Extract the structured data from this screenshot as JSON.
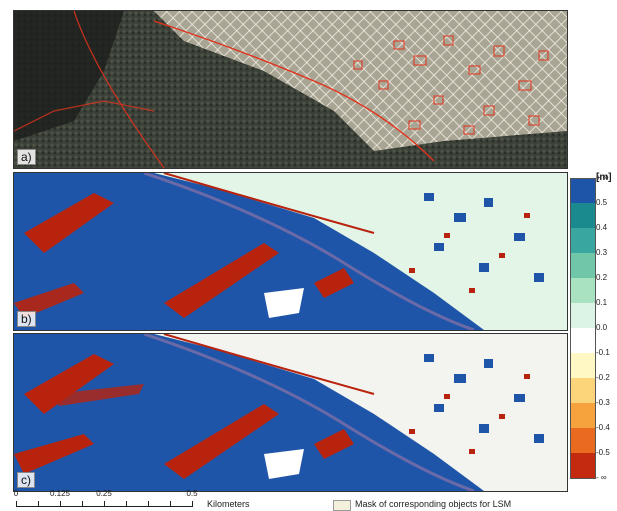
{
  "panels": [
    {
      "label": "a)"
    },
    {
      "label": "b)"
    },
    {
      "label": "c)"
    }
  ],
  "legend": {
    "unit": "[m]",
    "ticks": [
      "+ ∞",
      "0.5",
      "0.4",
      "0.3",
      "0.2",
      "0.1",
      "0.0",
      "-0.1",
      "-0.2",
      "-0.3",
      "-0.4",
      "-0.5",
      "- ∞"
    ],
    "colors": [
      "#1f55a8",
      "#1a8a8e",
      "#3aa6a0",
      "#6fc6a8",
      "#a9e2c0",
      "#dcf4e6",
      "#ffffff",
      "#fff7c4",
      "#fcd57a",
      "#f6a23d",
      "#ea6a20",
      "#c42a10"
    ]
  },
  "scalebar": {
    "ticks": [
      "0",
      "0.125",
      "0.25",
      "0.5"
    ],
    "unit": "Kilometers"
  },
  "mask_legend": {
    "label": "Mask of corresponding objects for LSM",
    "color": "#f4f0dc"
  },
  "colors": {
    "water_blue": "#1f55a8",
    "urban_pale": "#e3f5e7",
    "red_change": "#b8230e",
    "outline_red": "#e0321c"
  }
}
